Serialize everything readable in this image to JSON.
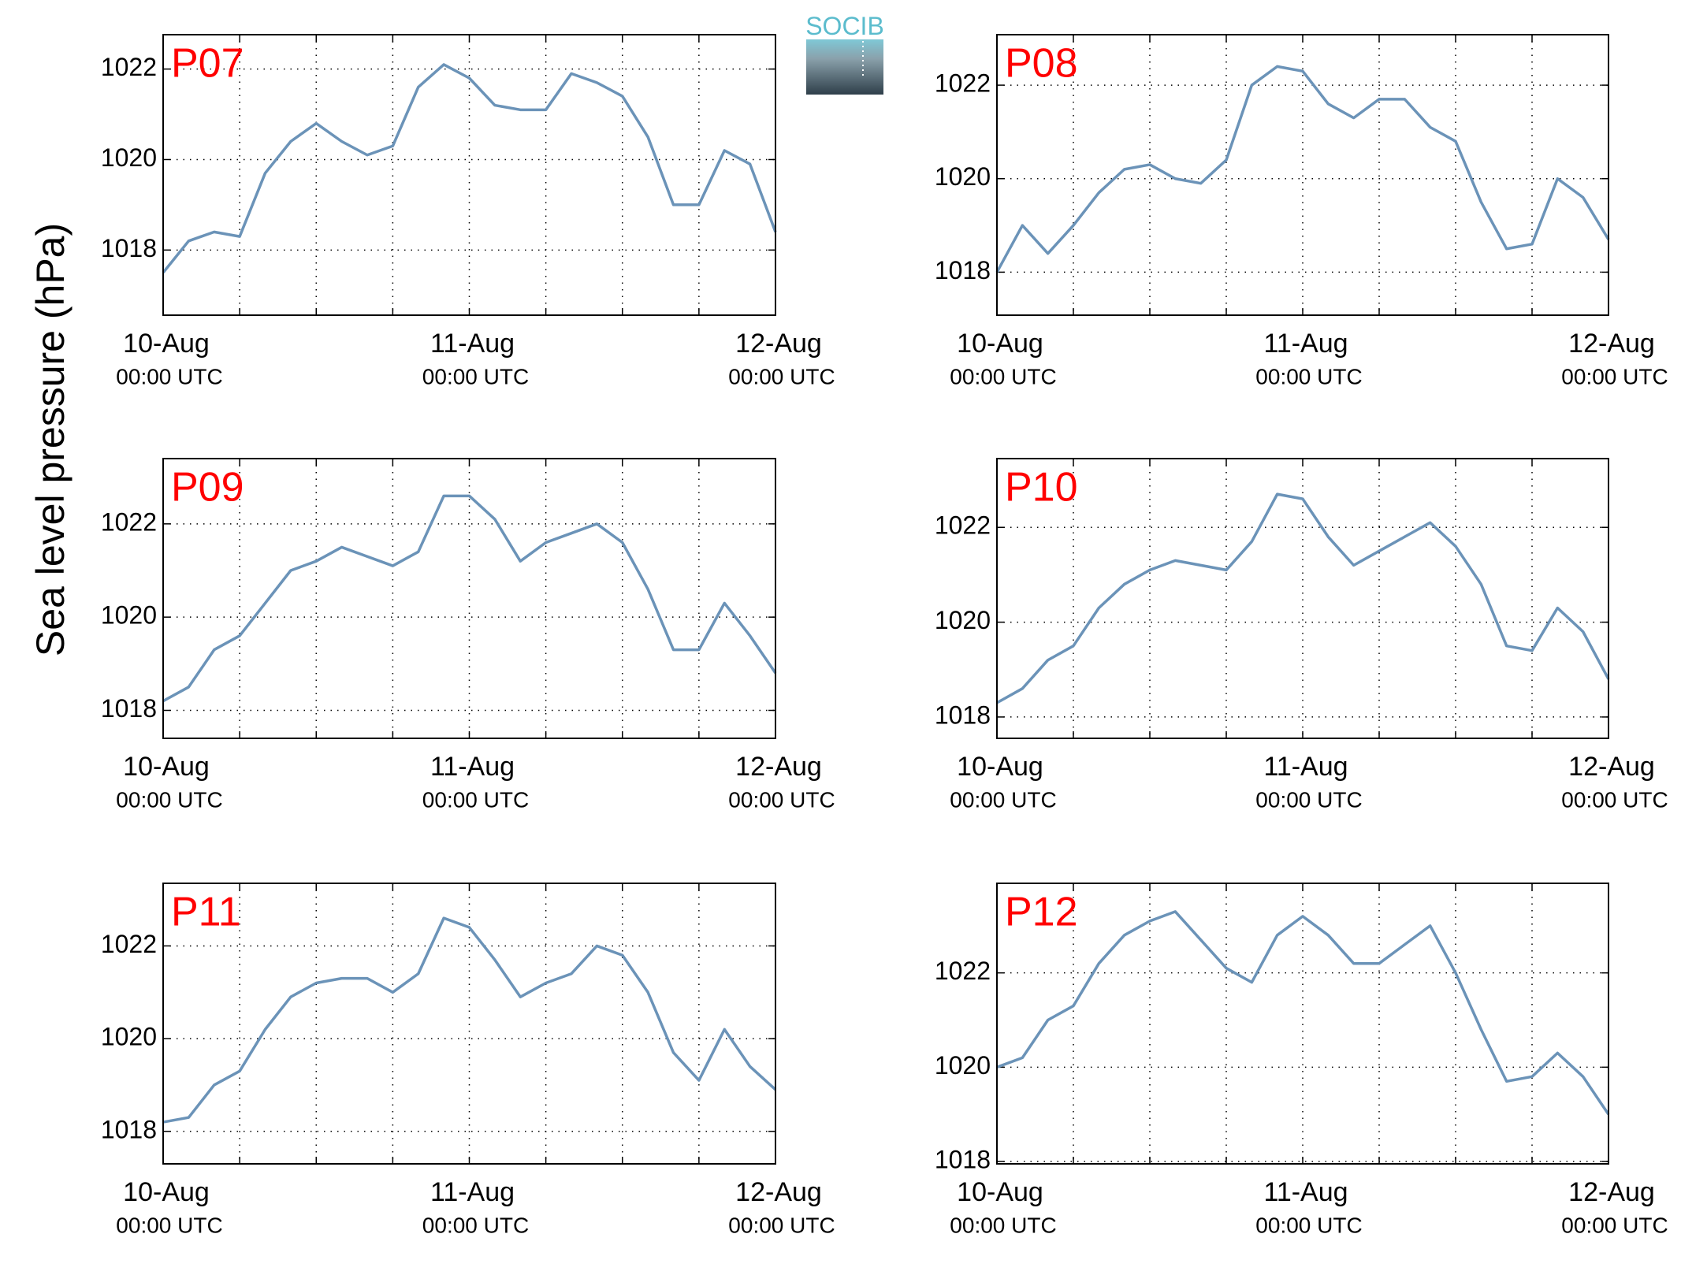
{
  "ylabel": "Sea level pressure (hPa)",
  "logo": "SOCIB",
  "chart_data": [
    {
      "type": "line",
      "title": "P07",
      "title_color": "#ff0000",
      "color": "#6b93b8",
      "grid": true,
      "x": [
        0,
        2,
        4,
        6,
        8,
        10,
        12,
        14,
        16,
        18,
        20,
        22,
        24,
        26,
        28,
        30,
        32,
        34,
        36,
        38,
        40,
        42,
        44,
        46,
        48
      ],
      "values": [
        1017.5,
        1018.2,
        1018.4,
        1018.3,
        1019.7,
        1020.4,
        1020.8,
        1020.4,
        1020.1,
        1020.3,
        1021.6,
        1022.1,
        1021.8,
        1021.2,
        1021.1,
        1021.1,
        1021.9,
        1021.7,
        1021.4,
        1020.5,
        1019.0,
        1019.0,
        1020.2,
        1019.9,
        1018.4
      ],
      "xlim": [
        0,
        48
      ],
      "xticks": [
        {
          "value": 0,
          "label": [
            "10-Aug",
            "00:00 UTC"
          ]
        },
        {
          "value": 24,
          "label": [
            "11-Aug",
            "00:00 UTC"
          ]
        },
        {
          "value": 48,
          "label": [
            "12-Aug",
            "00:00 UTC"
          ]
        }
      ],
      "xminorticks": [
        6,
        12,
        18,
        30,
        36,
        42
      ],
      "ylim": [
        1016.56,
        1022.76
      ],
      "yticks": [
        1018,
        1020,
        1022
      ]
    },
    {
      "type": "line",
      "title": "P08",
      "title_color": "#ff0000",
      "color": "#6b93b8",
      "grid": true,
      "x": [
        0,
        2,
        4,
        6,
        8,
        10,
        12,
        14,
        16,
        18,
        20,
        22,
        24,
        26,
        28,
        30,
        32,
        34,
        36,
        38,
        40,
        42,
        44,
        46,
        48
      ],
      "values": [
        1018.0,
        1019.0,
        1018.4,
        1019.0,
        1019.7,
        1020.2,
        1020.3,
        1020.0,
        1019.9,
        1020.4,
        1022.0,
        1022.4,
        1022.3,
        1021.6,
        1021.3,
        1021.7,
        1021.7,
        1021.1,
        1020.8,
        1019.5,
        1018.5,
        1018.6,
        1020.0,
        1019.6,
        1018.7
      ],
      "xlim": [
        0,
        48
      ],
      "xticks": [
        {
          "value": 0,
          "label": [
            "10-Aug",
            "00:00 UTC"
          ]
        },
        {
          "value": 24,
          "label": [
            "11-Aug",
            "00:00 UTC"
          ]
        },
        {
          "value": 48,
          "label": [
            "12-Aug",
            "00:00 UTC"
          ]
        }
      ],
      "xminorticks": [
        6,
        12,
        18,
        30,
        36,
        42
      ],
      "ylim": [
        1017.08,
        1023.08
      ],
      "yticks": [
        1018,
        1020,
        1022
      ]
    },
    {
      "type": "line",
      "title": "P09",
      "title_color": "#ff0000",
      "color": "#6b93b8",
      "grid": true,
      "x": [
        0,
        2,
        4,
        6,
        8,
        10,
        12,
        14,
        16,
        18,
        20,
        22,
        24,
        26,
        28,
        30,
        32,
        34,
        36,
        38,
        40,
        42,
        44,
        46,
        48
      ],
      "values": [
        1018.2,
        1018.5,
        1019.3,
        1019.6,
        1020.3,
        1021.0,
        1021.2,
        1021.5,
        1021.3,
        1021.1,
        1021.4,
        1022.6,
        1022.6,
        1022.1,
        1021.2,
        1021.6,
        1021.8,
        1022.0,
        1021.6,
        1020.6,
        1019.3,
        1019.3,
        1020.3,
        1019.6,
        1018.8
      ],
      "xlim": [
        0,
        48
      ],
      "xticks": [
        {
          "value": 0,
          "label": [
            "10-Aug",
            "00:00 UTC"
          ]
        },
        {
          "value": 24,
          "label": [
            "11-Aug",
            "00:00 UTC"
          ]
        },
        {
          "value": 48,
          "label": [
            "12-Aug",
            "00:00 UTC"
          ]
        }
      ],
      "xminorticks": [
        6,
        12,
        18,
        30,
        36,
        42
      ],
      "ylim": [
        1017.4,
        1023.4
      ],
      "yticks": [
        1018,
        1020,
        1022
      ]
    },
    {
      "type": "line",
      "title": "P10",
      "title_color": "#ff0000",
      "color": "#6b93b8",
      "grid": true,
      "x": [
        0,
        2,
        4,
        6,
        8,
        10,
        12,
        14,
        16,
        18,
        20,
        22,
        24,
        26,
        28,
        30,
        32,
        34,
        36,
        38,
        40,
        42,
        44,
        46,
        48
      ],
      "values": [
        1018.3,
        1018.6,
        1019.2,
        1019.5,
        1020.3,
        1020.8,
        1021.1,
        1021.3,
        1021.2,
        1021.1,
        1021.7,
        1022.7,
        1022.6,
        1021.8,
        1021.2,
        1021.5,
        1021.8,
        1022.1,
        1021.6,
        1020.8,
        1019.5,
        1019.4,
        1020.3,
        1019.8,
        1018.8
      ],
      "xlim": [
        0,
        48
      ],
      "xticks": [
        {
          "value": 0,
          "label": [
            "10-Aug",
            "00:00 UTC"
          ]
        },
        {
          "value": 24,
          "label": [
            "11-Aug",
            "00:00 UTC"
          ]
        },
        {
          "value": 48,
          "label": [
            "12-Aug",
            "00:00 UTC"
          ]
        }
      ],
      "xminorticks": [
        6,
        12,
        18,
        30,
        36,
        42
      ],
      "ylim": [
        1017.55,
        1023.45
      ],
      "yticks": [
        1018,
        1020,
        1022
      ]
    },
    {
      "type": "line",
      "title": "P11",
      "title_color": "#ff0000",
      "color": "#6b93b8",
      "grid": true,
      "x": [
        0,
        2,
        4,
        6,
        8,
        10,
        12,
        14,
        16,
        18,
        20,
        22,
        24,
        26,
        28,
        30,
        32,
        34,
        36,
        38,
        40,
        42,
        44,
        46,
        48
      ],
      "values": [
        1018.2,
        1018.3,
        1019.0,
        1019.3,
        1020.2,
        1020.9,
        1021.2,
        1021.3,
        1021.3,
        1021.0,
        1021.4,
        1022.6,
        1022.4,
        1021.7,
        1020.9,
        1021.2,
        1021.4,
        1022.0,
        1021.8,
        1021.0,
        1019.7,
        1019.1,
        1020.2,
        1019.4,
        1018.9
      ],
      "xlim": [
        0,
        48
      ],
      "xticks": [
        {
          "value": 0,
          "label": [
            "10-Aug",
            "00:00 UTC"
          ]
        },
        {
          "value": 24,
          "label": [
            "11-Aug",
            "00:00 UTC"
          ]
        },
        {
          "value": 48,
          "label": [
            "12-Aug",
            "00:00 UTC"
          ]
        }
      ],
      "xminorticks": [
        6,
        12,
        18,
        30,
        36,
        42
      ],
      "ylim": [
        1017.3,
        1023.35
      ],
      "yticks": [
        1018,
        1020,
        1022
      ]
    },
    {
      "type": "line",
      "title": "P12",
      "title_color": "#ff0000",
      "color": "#6b93b8",
      "grid": true,
      "x": [
        0,
        2,
        4,
        6,
        8,
        10,
        12,
        14,
        16,
        18,
        20,
        22,
        24,
        26,
        28,
        30,
        32,
        34,
        36,
        38,
        40,
        42,
        44,
        46,
        48
      ],
      "values": [
        1020.0,
        1020.2,
        1021.0,
        1021.3,
        1022.2,
        1022.8,
        1023.1,
        1023.3,
        1022.7,
        1022.1,
        1021.8,
        1022.8,
        1023.2,
        1022.8,
        1022.2,
        1022.2,
        1022.6,
        1023.0,
        1022.0,
        1020.8,
        1019.7,
        1019.8,
        1020.3,
        1019.8,
        1019.0
      ],
      "xlim": [
        0,
        48
      ],
      "xticks": [
        {
          "value": 0,
          "label": [
            "10-Aug",
            "00:00 UTC"
          ]
        },
        {
          "value": 24,
          "label": [
            "11-Aug",
            "00:00 UTC"
          ]
        },
        {
          "value": 48,
          "label": [
            "12-Aug",
            "00:00 UTC"
          ]
        }
      ],
      "xminorticks": [
        6,
        12,
        18,
        30,
        36,
        42
      ],
      "ylim": [
        1017.95,
        1023.9
      ],
      "yticks": [
        1018,
        1020,
        1022
      ]
    }
  ]
}
